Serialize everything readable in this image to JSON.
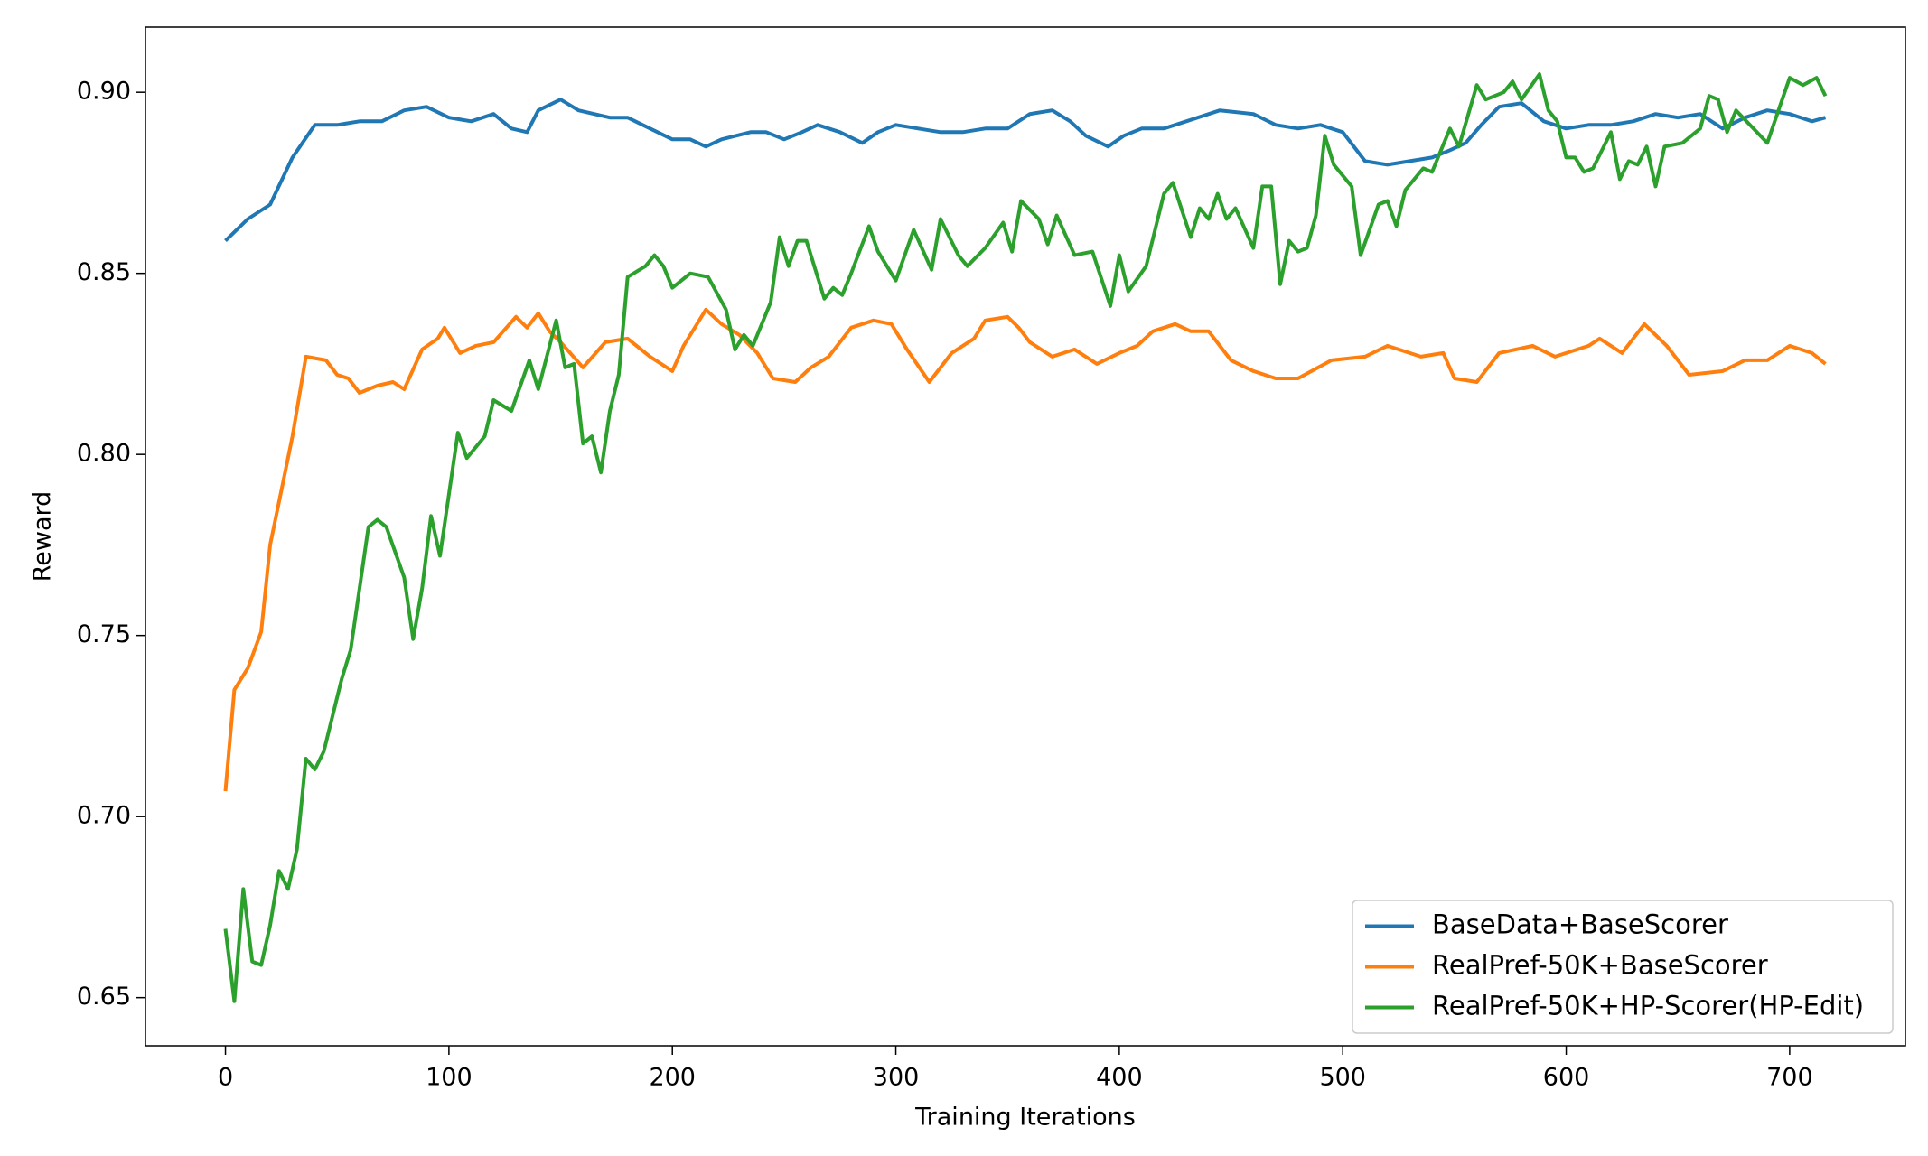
{
  "chart_data": {
    "type": "line",
    "x_label": "Training Iterations",
    "y_label": "Reward",
    "xlim": [
      -35.8,
      751.8
    ],
    "ylim": [
      0.6367,
      0.918
    ],
    "xticks": [
      0,
      100,
      200,
      300,
      400,
      500,
      600,
      700
    ],
    "yticks": [
      0.65,
      {
        "value": 0.7,
        "label": "0.70"
      },
      0.75,
      {
        "value": 0.8,
        "label": "0.80"
      },
      0.85,
      {
        "value": 0.9,
        "label": "0.90"
      }
    ],
    "legend": "lower right",
    "series": [
      {
        "name": "BaseData+BaseScorer",
        "color": "#1f77b4",
        "x": [
          0,
          10,
          20,
          30,
          40,
          50,
          60,
          70,
          80,
          90,
          100,
          110,
          120,
          128,
          135,
          140,
          150,
          158,
          165,
          172,
          180,
          190,
          200,
          208,
          215,
          222,
          235,
          242,
          250,
          258,
          265,
          275,
          285,
          292,
          300,
          310,
          320,
          330,
          340,
          350,
          360,
          370,
          378,
          385,
          395,
          402,
          410,
          420,
          430,
          445,
          460,
          470,
          480,
          490,
          500,
          510,
          520,
          530,
          540,
          548,
          555,
          562,
          570,
          580,
          590,
          600,
          610,
          620,
          630,
          640,
          650,
          660,
          670,
          680,
          690,
          700,
          710,
          716
        ],
        "values": [
          0.859,
          0.865,
          0.869,
          0.882,
          0.891,
          0.891,
          0.892,
          0.892,
          0.895,
          0.896,
          0.893,
          0.892,
          0.894,
          0.89,
          0.889,
          0.895,
          0.898,
          0.895,
          0.894,
          0.893,
          0.893,
          0.89,
          0.887,
          0.887,
          0.885,
          0.887,
          0.889,
          0.889,
          0.887,
          0.889,
          0.891,
          0.889,
          0.886,
          0.889,
          0.891,
          0.89,
          0.889,
          0.889,
          0.89,
          0.89,
          0.894,
          0.895,
          0.892,
          0.888,
          0.885,
          0.888,
          0.89,
          0.89,
          0.892,
          0.895,
          0.894,
          0.891,
          0.89,
          0.891,
          0.889,
          0.881,
          0.88,
          0.881,
          0.882,
          0.884,
          0.886,
          0.891,
          0.896,
          0.897,
          0.892,
          0.89,
          0.891,
          0.891,
          0.892,
          0.894,
          0.893,
          0.894,
          0.89,
          0.893,
          0.895,
          0.894,
          0.892,
          0.893
        ]
      },
      {
        "name": "RealPref-50K+BaseScorer",
        "color": "#ff7f0e",
        "x": [
          0,
          4,
          10,
          16,
          20,
          25,
          30,
          36,
          45,
          50,
          55,
          60,
          68,
          75,
          80,
          88,
          95,
          98,
          105,
          112,
          120,
          130,
          135,
          140,
          145,
          150,
          160,
          170,
          180,
          190,
          200,
          205,
          215,
          222,
          230,
          238,
          245,
          255,
          262,
          270,
          280,
          290,
          298,
          305,
          315,
          325,
          335,
          340,
          350,
          355,
          360,
          370,
          380,
          390,
          400,
          408,
          415,
          425,
          432,
          440,
          450,
          460,
          470,
          480,
          495,
          510,
          520,
          535,
          545,
          550,
          560,
          570,
          585,
          595,
          610,
          615,
          625,
          635,
          645,
          655,
          670,
          680,
          690,
          700,
          710,
          716
        ],
        "values": [
          0.707,
          0.735,
          0.741,
          0.751,
          0.775,
          0.79,
          0.805,
          0.827,
          0.826,
          0.822,
          0.821,
          0.817,
          0.819,
          0.82,
          0.818,
          0.829,
          0.832,
          0.835,
          0.828,
          0.83,
          0.831,
          0.838,
          0.835,
          0.839,
          0.834,
          0.831,
          0.824,
          0.831,
          0.832,
          0.827,
          0.823,
          0.83,
          0.84,
          0.836,
          0.833,
          0.828,
          0.821,
          0.82,
          0.824,
          0.827,
          0.835,
          0.837,
          0.836,
          0.829,
          0.82,
          0.828,
          0.832,
          0.837,
          0.838,
          0.835,
          0.831,
          0.827,
          0.829,
          0.825,
          0.828,
          0.83,
          0.834,
          0.836,
          0.834,
          0.834,
          0.826,
          0.823,
          0.821,
          0.821,
          0.826,
          0.827,
          0.83,
          0.827,
          0.828,
          0.821,
          0.82,
          0.828,
          0.83,
          0.827,
          0.83,
          0.832,
          0.828,
          0.836,
          0.83,
          0.822,
          0.823,
          0.826,
          0.826,
          0.83,
          0.828,
          0.825
        ]
      },
      {
        "name": "RealPref-50K+HP-Scorer(HP-Edit)",
        "color": "#2ca02c",
        "x": [
          0,
          4,
          8,
          12,
          16,
          20,
          24,
          28,
          32,
          36,
          40,
          44,
          52,
          56,
          64,
          68,
          72,
          80,
          84,
          88,
          92,
          96,
          104,
          108,
          116,
          120,
          128,
          136,
          140,
          148,
          152,
          156,
          160,
          164,
          168,
          172,
          176,
          180,
          188,
          192,
          196,
          200,
          208,
          216,
          224,
          228,
          232,
          236,
          244,
          248,
          252,
          256,
          260,
          268,
          272,
          276,
          280,
          288,
          292,
          300,
          308,
          316,
          320,
          328,
          332,
          340,
          348,
          352,
          356,
          364,
          368,
          372,
          380,
          388,
          396,
          400,
          404,
          412,
          420,
          424,
          432,
          436,
          440,
          444,
          448,
          452,
          460,
          464,
          468,
          472,
          476,
          480,
          484,
          488,
          492,
          496,
          504,
          508,
          516,
          520,
          524,
          528,
          536,
          540,
          544,
          548,
          552,
          560,
          564,
          568,
          572,
          576,
          580,
          588,
          592,
          596,
          600,
          604,
          608,
          612,
          620,
          624,
          628,
          632,
          636,
          640,
          644,
          652,
          660,
          664,
          668,
          672,
          676,
          690,
          700,
          706,
          712,
          716
        ],
        "values": [
          0.669,
          0.649,
          0.68,
          0.66,
          0.659,
          0.67,
          0.685,
          0.68,
          0.691,
          0.716,
          0.713,
          0.718,
          0.738,
          0.746,
          0.78,
          0.782,
          0.78,
          0.766,
          0.749,
          0.763,
          0.783,
          0.772,
          0.806,
          0.799,
          0.805,
          0.815,
          0.812,
          0.826,
          0.818,
          0.837,
          0.824,
          0.825,
          0.803,
          0.805,
          0.795,
          0.812,
          0.822,
          0.849,
          0.852,
          0.855,
          0.852,
          0.846,
          0.85,
          0.849,
          0.84,
          0.829,
          0.833,
          0.83,
          0.842,
          0.86,
          0.852,
          0.859,
          0.859,
          0.843,
          0.846,
          0.844,
          0.85,
          0.863,
          0.856,
          0.848,
          0.862,
          0.851,
          0.865,
          0.855,
          0.852,
          0.857,
          0.864,
          0.856,
          0.87,
          0.865,
          0.858,
          0.866,
          0.855,
          0.856,
          0.841,
          0.855,
          0.845,
          0.852,
          0.872,
          0.875,
          0.86,
          0.868,
          0.865,
          0.872,
          0.865,
          0.868,
          0.857,
          0.874,
          0.874,
          0.847,
          0.859,
          0.856,
          0.857,
          0.866,
          0.888,
          0.88,
          0.874,
          0.855,
          0.869,
          0.87,
          0.863,
          0.873,
          0.879,
          0.878,
          0.884,
          0.89,
          0.885,
          0.902,
          0.898,
          0.899,
          0.9,
          0.903,
          0.898,
          0.905,
          0.895,
          0.892,
          0.882,
          0.882,
          0.878,
          0.879,
          0.889,
          0.876,
          0.881,
          0.88,
          0.885,
          0.874,
          0.885,
          0.886,
          0.89,
          0.899,
          0.898,
          0.889,
          0.895,
          0.886,
          0.904,
          0.902,
          0.904,
          0.899
        ]
      }
    ]
  }
}
